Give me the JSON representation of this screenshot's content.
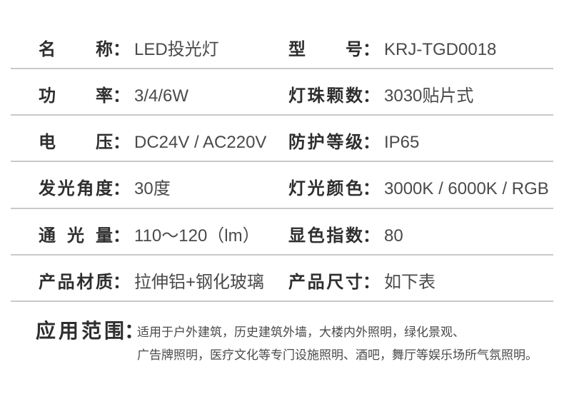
{
  "colors": {
    "label_text": "#2e2e2e",
    "value_text": "#4a4a4a",
    "divider": "#c9c9c9"
  },
  "spec_table": {
    "colon": "：",
    "rows": [
      {
        "label_left": "名称",
        "value_left": "LED投光灯",
        "label_right": "型号",
        "value_right": "KRJ-TGD0018"
      },
      {
        "label_left": "功率",
        "value_left": "3/4/6W",
        "label_right": "灯珠颗数",
        "value_right": "3030贴片式"
      },
      {
        "label_left": "电压",
        "value_left": "DC24V / AC220V",
        "label_right": "防护等级",
        "value_right": "IP65"
      },
      {
        "label_left": "发光角度",
        "value_left": "30度",
        "label_right": "灯光颜色",
        "value_right": "3000K / 6000K / RGB"
      },
      {
        "label_left": "通光量",
        "value_left": "110～120（lm）",
        "label_right": "显色指数",
        "value_right": "80"
      },
      {
        "label_left": "产品材质",
        "value_left": "拉伸铝+钢化玻璃",
        "label_right": "产品尺寸",
        "value_right": "如下表"
      }
    ],
    "application": {
      "label": "应用范围",
      "line1": "适用于户外建筑，历史建筑外墙，大楼内外照明，绿化景观、",
      "line2": "广告牌照明，医疗文化等专门设施照明、酒吧，舞厅等娱乐场所气氛照明。"
    }
  }
}
